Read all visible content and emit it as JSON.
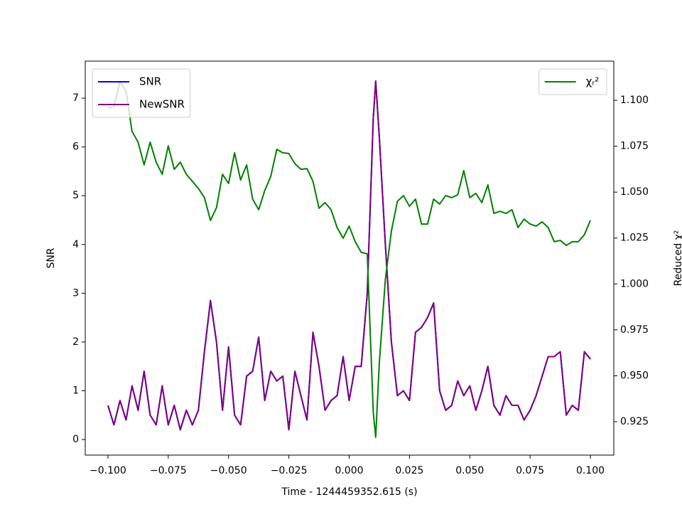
{
  "chart_data": {
    "type": "line",
    "xlabel": "Time - 1244459352.615 (s)",
    "ylabel": "SNR",
    "y2label": "Reduced χ²",
    "xlim": [
      -0.1094,
      0.1097
    ],
    "ylim": [
      -0.32,
      7.76
    ],
    "y2lim": [
      0.9068,
      1.1213
    ],
    "xticks": [
      {
        "value": -0.1,
        "label": "−0.100"
      },
      {
        "value": -0.075,
        "label": "−0.075"
      },
      {
        "value": -0.05,
        "label": "−0.050"
      },
      {
        "value": -0.025,
        "label": "−0.025"
      },
      {
        "value": 0,
        "label": "0.000"
      },
      {
        "value": 0.025,
        "label": "0.025"
      },
      {
        "value": 0.05,
        "label": "0.050"
      },
      {
        "value": 0.075,
        "label": "0.075"
      },
      {
        "value": 0.1,
        "label": "0.100"
      }
    ],
    "yticks": [
      0,
      1,
      2,
      3,
      4,
      5,
      6,
      7
    ],
    "y2ticks": [
      0.925,
      {
        "value": 0.95,
        "label": "0.950"
      },
      0.975,
      {
        "value": 1,
        "label": "1.000"
      },
      1.025,
      {
        "value": 1.05,
        "label": "1.050"
      },
      1.075,
      {
        "value": 1.1,
        "label": "1.100"
      }
    ],
    "grid": false,
    "legend_loc": "upper left",
    "legend2_loc": "upper right",
    "x": [
      -0.1,
      -0.0975,
      -0.095,
      -0.0925,
      -0.09,
      -0.0875,
      -0.085,
      -0.0825,
      -0.08,
      -0.0775,
      -0.075,
      -0.0725,
      -0.07,
      -0.0675,
      -0.065,
      -0.0625,
      -0.06,
      -0.0575,
      -0.055,
      -0.0525,
      -0.05,
      -0.0475,
      -0.045,
      -0.0425,
      -0.04,
      -0.0375,
      -0.035,
      -0.0325,
      -0.03,
      -0.0275,
      -0.025,
      -0.0225,
      -0.02,
      -0.0175,
      -0.015,
      -0.0125,
      -0.01,
      -0.0075,
      -0.005,
      -0.0025,
      0,
      0.0025,
      0.005,
      0.0075,
      0.01,
      0.011,
      0.0125,
      0.015,
      0.0175,
      0.02,
      0.0225,
      0.025,
      0.0275,
      0.03,
      0.0325,
      0.035,
      0.0375,
      0.04,
      0.0425,
      0.045,
      0.0475,
      0.05,
      0.0525,
      0.055,
      0.0575,
      0.06,
      0.0625,
      0.065,
      0.0675,
      0.07,
      0.0725,
      0.075,
      0.0775,
      0.08,
      0.0825,
      0.085,
      0.0875,
      0.09,
      0.0925,
      0.095,
      0.0975,
      0.1
    ],
    "series": [
      {
        "name": "SNR",
        "color": "#0000ff",
        "axis": "y",
        "values": [
          0.7,
          0.3,
          0.8,
          0.4,
          1.1,
          0.6,
          1.4,
          0.5,
          0.3,
          1.1,
          0.3,
          0.7,
          0.2,
          0.6,
          0.3,
          0.6,
          1.8,
          2.85,
          2.0,
          0.6,
          1.9,
          0.5,
          0.3,
          1.3,
          1.4,
          2.1,
          0.8,
          1.4,
          1.2,
          1.3,
          0.2,
          1.4,
          0.9,
          0.4,
          2.2,
          1.5,
          0.6,
          0.8,
          0.9,
          1.7,
          0.8,
          1.5,
          1.5,
          3.0,
          6.6,
          7.35,
          6.2,
          4.0,
          2.0,
          0.9,
          1.0,
          0.8,
          2.2,
          2.3,
          2.5,
          2.8,
          1.0,
          0.6,
          0.7,
          1.2,
          0.9,
          1.1,
          0.6,
          1.0,
          1.5,
          0.7,
          0.5,
          0.9,
          0.7,
          0.7,
          0.4,
          0.6,
          0.9,
          1.3,
          1.7,
          1.7,
          1.8,
          0.5,
          0.7,
          0.6,
          1.8,
          1.65
        ]
      },
      {
        "name": "NewSNR",
        "color": "#800080",
        "axis": "y",
        "values": [
          0.7,
          0.3,
          0.8,
          0.4,
          1.1,
          0.6,
          1.4,
          0.5,
          0.3,
          1.1,
          0.3,
          0.7,
          0.2,
          0.6,
          0.3,
          0.6,
          1.8,
          2.85,
          2.0,
          0.6,
          1.9,
          0.5,
          0.3,
          1.3,
          1.4,
          2.1,
          0.8,
          1.4,
          1.2,
          1.3,
          0.2,
          1.4,
          0.9,
          0.4,
          2.2,
          1.5,
          0.6,
          0.8,
          0.9,
          1.7,
          0.8,
          1.5,
          1.5,
          3.0,
          6.6,
          7.35,
          6.2,
          4.0,
          2.0,
          0.9,
          1.0,
          0.8,
          2.2,
          2.3,
          2.5,
          2.8,
          1.0,
          0.6,
          0.7,
          1.2,
          0.9,
          1.1,
          0.6,
          1.0,
          1.5,
          0.7,
          0.5,
          0.9,
          0.7,
          0.7,
          0.4,
          0.6,
          0.9,
          1.3,
          1.7,
          1.7,
          1.8,
          0.5,
          0.7,
          0.6,
          1.8,
          1.65
        ]
      },
      {
        "name": "χᵣ²",
        "color": "#008000",
        "axis": "y2",
        "values": [
          1.0957,
          1.0965,
          1.1101,
          1.105,
          1.083,
          1.0772,
          1.0648,
          1.0772,
          1.0663,
          1.0597,
          1.0752,
          1.0624,
          1.0663,
          1.0597,
          1.0559,
          1.052,
          1.047,
          1.0346,
          1.0415,
          1.0597,
          1.0547,
          1.0714,
          1.0566,
          1.0648,
          1.0462,
          1.0404,
          1.0508,
          1.0586,
          1.0733,
          1.0714,
          1.071,
          1.0655,
          1.0624,
          1.0628,
          1.0559,
          1.0412,
          1.0443,
          1.0404,
          1.0307,
          1.0249,
          1.0315,
          1.023,
          1.0172,
          1.0164,
          0.93,
          0.9165,
          0.9571,
          1.0024,
          1.0288,
          1.045,
          1.0481,
          1.0423,
          1.0462,
          1.0326,
          1.0326,
          1.0462,
          1.0435,
          1.0481,
          1.047,
          1.0485,
          1.0617,
          1.047,
          1.0493,
          1.0443,
          1.0539,
          1.0384,
          1.0396,
          1.0384,
          1.0404,
          1.0307,
          1.0353,
          1.0326,
          1.0315,
          1.0338,
          1.0307,
          1.023,
          1.0237,
          1.021,
          1.023,
          1.023,
          1.0268,
          1.0346
        ]
      }
    ]
  }
}
